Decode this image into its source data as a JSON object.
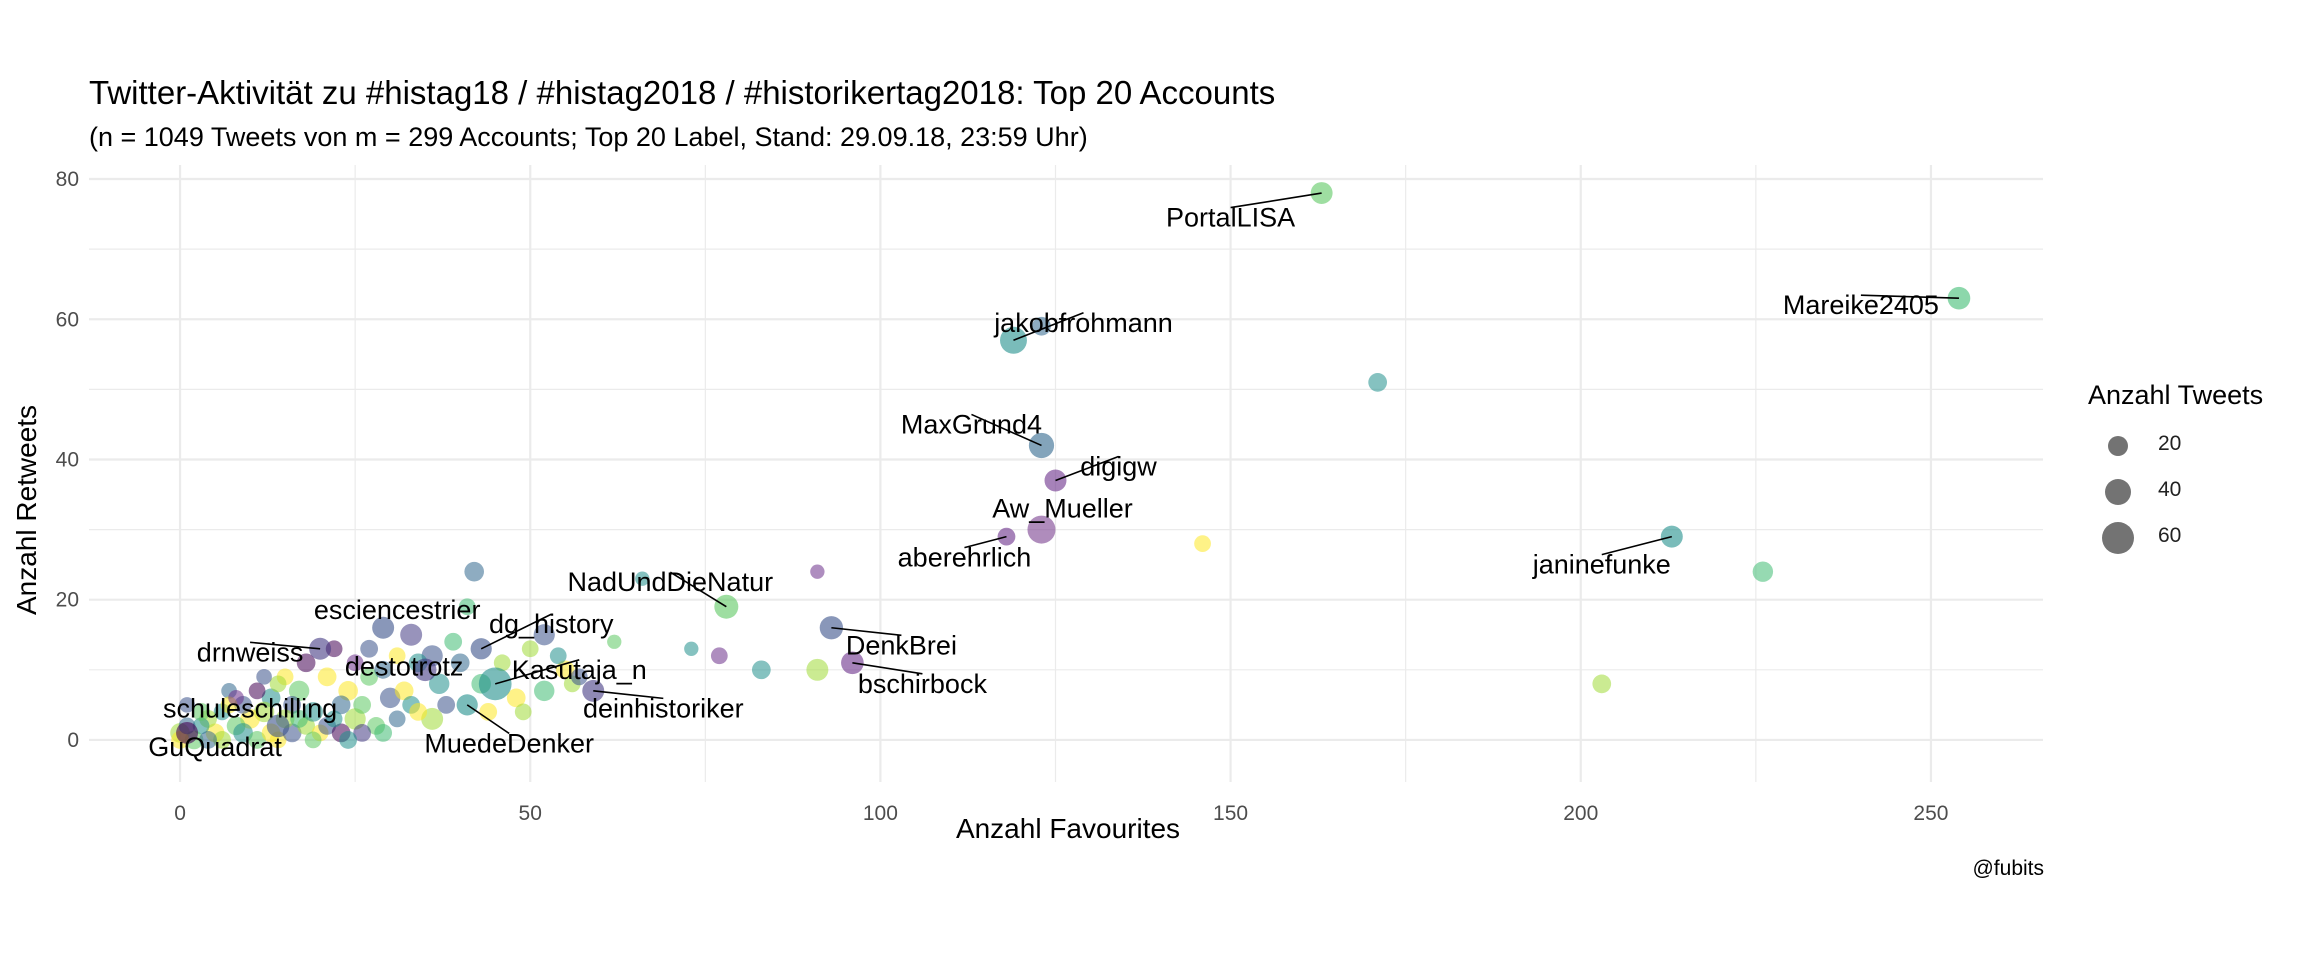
{
  "title": "Twitter-Aktivität zu #histag18 / #histag2018 / #historikertag2018: Top 20 Accounts",
  "subtitle": "(n = 1049 Tweets von m = 299 Accounts; Top 20 Label, Stand: 29.09.18, 23:59 Uhr)",
  "caption": "@fubits",
  "legend": {
    "title": "Anzahl Tweets",
    "items": [
      {
        "label": "20",
        "size": 20
      },
      {
        "label": "40",
        "size": 40
      },
      {
        "label": "60",
        "size": 60
      }
    ]
  },
  "colors": {
    "grid": "#ebebeb",
    "axis_text": "#4d4d4d",
    "palette": [
      "#440154",
      "#3b528b",
      "#21908c",
      "#5dc863",
      "#fde725"
    ]
  },
  "chart_data": {
    "type": "scatter",
    "title": "Twitter-Aktivität zu #histag18 / #histag2018 / #historikertag2018: Top 20 Accounts",
    "subtitle": "(n = 1049 Tweets von m = 299 Accounts; Top 20 Label, Stand: 29.09.18, 23:59 Uhr)",
    "xlabel": "Anzahl Favourites",
    "ylabel": "Anzahl Retweets",
    "xlim": [
      -13,
      266
    ],
    "ylim": [
      -6,
      82
    ],
    "xticks": [
      0,
      50,
      100,
      150,
      200,
      250
    ],
    "yticks": [
      0,
      20,
      40,
      60,
      80
    ],
    "grid": true,
    "legend_position": "right",
    "size_variable": "Anzahl Tweets",
    "labeled_points": [
      {
        "name": "PortalLISA",
        "x": 163,
        "y": 78,
        "size": 22,
        "color": "#5dc863",
        "label_x": 150,
        "label_y": 74.5
      },
      {
        "name": "Mareike2405",
        "x": 254,
        "y": 63,
        "size": 24,
        "color": "#3fbc73",
        "label_x": 240,
        "label_y": 62
      },
      {
        "name": "jakobfrohmann",
        "x": 119,
        "y": 57,
        "size": 38,
        "color": "#21908c",
        "label_x": 129,
        "label_y": 59.5
      },
      {
        "name": "MaxGrund4",
        "x": 123,
        "y": 42,
        "size": 32,
        "color": "#31688e",
        "label_x": 113,
        "label_y": 45
      },
      {
        "name": "digigw",
        "x": 125,
        "y": 37,
        "size": 22,
        "color": "#6b2f8a",
        "label_x": 134,
        "label_y": 39
      },
      {
        "name": "Aw_Mueller",
        "x": 123,
        "y": 30,
        "size": 42,
        "color": "#7a3f8f",
        "label_x": 126,
        "label_y": 33
      },
      {
        "name": "aberehrlich",
        "x": 118,
        "y": 29,
        "size": 12,
        "color": "#6b2f8a",
        "label_x": 112,
        "label_y": 26
      },
      {
        "name": "janinefunke",
        "x": 213,
        "y": 29,
        "size": 22,
        "color": "#21908c",
        "label_x": 203,
        "label_y": 25
      },
      {
        "name": "NadUndDieNatur",
        "x": 78,
        "y": 19,
        "size": 28,
        "color": "#5dc863",
        "label_x": 70,
        "label_y": 22.5
      },
      {
        "name": "esciencestrier",
        "x": 29,
        "y": 16,
        "size": 22,
        "color": "#3b528b",
        "label_x": 31,
        "label_y": 18.5
      },
      {
        "name": "DenkBrei",
        "x": 93,
        "y": 16,
        "size": 26,
        "color": "#3b528b",
        "label_x": 103,
        "label_y": 13.5
      },
      {
        "name": "dg_history",
        "x": 43,
        "y": 13,
        "size": 20,
        "color": "#3b528b",
        "label_x": 53,
        "label_y": 16.5
      },
      {
        "name": "drnweiss",
        "x": 20,
        "y": 13,
        "size": 22,
        "color": "#443a83",
        "label_x": 10,
        "label_y": 12.5
      },
      {
        "name": "bschirbock",
        "x": 96,
        "y": 11,
        "size": 24,
        "color": "#6b2f8a",
        "label_x": 106,
        "label_y": 8
      },
      {
        "name": "destotrotz",
        "x": 35,
        "y": 10,
        "size": 24,
        "color": "#443a83",
        "label_x": 32,
        "label_y": 10.5
      },
      {
        "name": "Kasutaja_n",
        "x": 45,
        "y": 8,
        "size": 62,
        "color": "#21908c",
        "label_x": 57,
        "label_y": 10
      },
      {
        "name": "deinhistoriker",
        "x": 59,
        "y": 7,
        "size": 22,
        "color": "#443a83",
        "label_x": 69,
        "label_y": 4.5
      },
      {
        "name": "schuleschilling",
        "x": 14,
        "y": 2,
        "size": 24,
        "color": "#3b528b",
        "label_x": 10,
        "label_y": 4.5
      },
      {
        "name": "MuedeDenker",
        "x": 41,
        "y": 5,
        "size": 20,
        "color": "#21908c",
        "label_x": 47,
        "label_y": -0.5
      },
      {
        "name": "GuQuadrat",
        "x": 1,
        "y": 1,
        "size": 22,
        "color": "#440154",
        "label_x": 5,
        "label_y": -1
      }
    ],
    "other_points": [
      {
        "x": 171,
        "y": 51,
        "size": 14,
        "color": "#21908c"
      },
      {
        "x": 146,
        "y": 28,
        "size": 10,
        "color": "#fde725"
      },
      {
        "x": 226,
        "y": 24,
        "size": 18,
        "color": "#3fbc73"
      },
      {
        "x": 203,
        "y": 8,
        "size": 14,
        "color": "#a0da39"
      },
      {
        "x": 91,
        "y": 24,
        "size": 6,
        "color": "#6b2f8a"
      },
      {
        "x": 123,
        "y": 59,
        "size": 14,
        "color": "#31688e"
      },
      {
        "x": 91,
        "y": 10,
        "size": 22,
        "color": "#a0da39"
      },
      {
        "x": 83,
        "y": 10,
        "size": 14,
        "color": "#21908c"
      },
      {
        "x": 77,
        "y": 12,
        "size": 10,
        "color": "#6b2f8a"
      },
      {
        "x": 73,
        "y": 13,
        "size": 6,
        "color": "#21908c"
      },
      {
        "x": 66,
        "y": 23,
        "size": 6,
        "color": "#21908c"
      },
      {
        "x": 42,
        "y": 24,
        "size": 16,
        "color": "#31688e"
      },
      {
        "x": 41,
        "y": 19,
        "size": 10,
        "color": "#3fbc73"
      },
      {
        "x": 52,
        "y": 15,
        "size": 20,
        "color": "#3b528b"
      },
      {
        "x": 50,
        "y": 13,
        "size": 10,
        "color": "#a0da39"
      },
      {
        "x": 55,
        "y": 10,
        "size": 14,
        "color": "#fde725"
      },
      {
        "x": 52,
        "y": 7,
        "size": 18,
        "color": "#3fbc73"
      },
      {
        "x": 56,
        "y": 8,
        "size": 10,
        "color": "#a0da39"
      },
      {
        "x": 48,
        "y": 6,
        "size": 14,
        "color": "#fde725"
      },
      {
        "x": 62,
        "y": 14,
        "size": 6,
        "color": "#5dc863"
      },
      {
        "x": 57,
        "y": 9,
        "size": 10,
        "color": "#3b528b"
      },
      {
        "x": 36,
        "y": 12,
        "size": 20,
        "color": "#3b528b"
      },
      {
        "x": 37,
        "y": 8,
        "size": 18,
        "color": "#21908c"
      },
      {
        "x": 33,
        "y": 15,
        "size": 22,
        "color": "#443a83"
      },
      {
        "x": 34,
        "y": 11,
        "size": 14,
        "color": "#21908c"
      },
      {
        "x": 38,
        "y": 5,
        "size": 12,
        "color": "#3b528b"
      },
      {
        "x": 40,
        "y": 11,
        "size": 14,
        "color": "#31688e"
      },
      {
        "x": 30,
        "y": 6,
        "size": 18,
        "color": "#3b528b"
      },
      {
        "x": 36,
        "y": 3,
        "size": 22,
        "color": "#a0da39"
      },
      {
        "x": 32,
        "y": 7,
        "size": 14,
        "color": "#fde725"
      },
      {
        "x": 27,
        "y": 9,
        "size": 12,
        "color": "#5dc863"
      },
      {
        "x": 24,
        "y": 7,
        "size": 16,
        "color": "#fde725"
      },
      {
        "x": 25,
        "y": 3,
        "size": 20,
        "color": "#a0da39"
      },
      {
        "x": 28,
        "y": 2,
        "size": 12,
        "color": "#5dc863"
      },
      {
        "x": 23,
        "y": 5,
        "size": 14,
        "color": "#31688e"
      },
      {
        "x": 22,
        "y": 13,
        "size": 10,
        "color": "#440154"
      },
      {
        "x": 21,
        "y": 9,
        "size": 14,
        "color": "#fde725"
      },
      {
        "x": 18,
        "y": 11,
        "size": 14,
        "color": "#440154"
      },
      {
        "x": 17,
        "y": 7,
        "size": 18,
        "color": "#5dc863"
      },
      {
        "x": 16,
        "y": 5,
        "size": 12,
        "color": "#3b528b"
      },
      {
        "x": 15,
        "y": 9,
        "size": 10,
        "color": "#fde725"
      },
      {
        "x": 13,
        "y": 6,
        "size": 14,
        "color": "#21908c"
      },
      {
        "x": 12,
        "y": 4,
        "size": 18,
        "color": "#a0da39"
      },
      {
        "x": 11,
        "y": 7,
        "size": 10,
        "color": "#440154"
      },
      {
        "x": 10,
        "y": 3,
        "size": 16,
        "color": "#fde725"
      },
      {
        "x": 9,
        "y": 5,
        "size": 12,
        "color": "#3b528b"
      },
      {
        "x": 8,
        "y": 2,
        "size": 14,
        "color": "#5dc863"
      },
      {
        "x": 7,
        "y": 7,
        "size": 8,
        "color": "#31688e"
      },
      {
        "x": 6,
        "y": 4,
        "size": 10,
        "color": "#21908c"
      },
      {
        "x": 5,
        "y": 1,
        "size": 14,
        "color": "#fde725"
      },
      {
        "x": 4,
        "y": 3,
        "size": 12,
        "color": "#a0da39"
      },
      {
        "x": 3,
        "y": 2,
        "size": 10,
        "color": "#21908c"
      },
      {
        "x": 2,
        "y": 0,
        "size": 14,
        "color": "#5dc863"
      },
      {
        "x": 0,
        "y": 1,
        "size": 16,
        "color": "#a0da39"
      },
      {
        "x": 0,
        "y": 0,
        "size": 12,
        "color": "#fde725"
      },
      {
        "x": 1,
        "y": 2,
        "size": 10,
        "color": "#31688e"
      },
      {
        "x": 6,
        "y": 0,
        "size": 12,
        "color": "#a0da39"
      },
      {
        "x": 9,
        "y": 1,
        "size": 16,
        "color": "#21908c"
      },
      {
        "x": 11,
        "y": 0,
        "size": 12,
        "color": "#5dc863"
      },
      {
        "x": 14,
        "y": 0,
        "size": 10,
        "color": "#fde725"
      },
      {
        "x": 16,
        "y": 1,
        "size": 14,
        "color": "#3b528b"
      },
      {
        "x": 18,
        "y": 2,
        "size": 12,
        "color": "#a0da39"
      },
      {
        "x": 19,
        "y": 4,
        "size": 16,
        "color": "#21908c"
      },
      {
        "x": 20,
        "y": 1,
        "size": 10,
        "color": "#fde725"
      },
      {
        "x": 21,
        "y": 2,
        "size": 12,
        "color": "#3b528b"
      },
      {
        "x": 23,
        "y": 1,
        "size": 14,
        "color": "#440154"
      },
      {
        "x": 26,
        "y": 1,
        "size": 12,
        "color": "#443a83"
      },
      {
        "x": 29,
        "y": 1,
        "size": 12,
        "color": "#3fbc73"
      },
      {
        "x": 33,
        "y": 5,
        "size": 12,
        "color": "#21908c"
      },
      {
        "x": 14,
        "y": 8,
        "size": 10,
        "color": "#a0da39"
      },
      {
        "x": 12,
        "y": 9,
        "size": 8,
        "color": "#3b528b"
      },
      {
        "x": 7,
        "y": 5,
        "size": 10,
        "color": "#fde725"
      },
      {
        "x": 3,
        "y": 4,
        "size": 12,
        "color": "#5dc863"
      },
      {
        "x": 8,
        "y": 6,
        "size": 8,
        "color": "#6b2f8a"
      },
      {
        "x": 15,
        "y": 3,
        "size": 14,
        "color": "#a0da39"
      },
      {
        "x": 17,
        "y": 3,
        "size": 12,
        "color": "#3fbc73"
      },
      {
        "x": 22,
        "y": 3,
        "size": 10,
        "color": "#21908c"
      },
      {
        "x": 26,
        "y": 5,
        "size": 12,
        "color": "#5dc863"
      },
      {
        "x": 31,
        "y": 3,
        "size": 10,
        "color": "#31688e"
      },
      {
        "x": 34,
        "y": 4,
        "size": 12,
        "color": "#fde725"
      },
      {
        "x": 43,
        "y": 8,
        "size": 16,
        "color": "#3fbc73"
      },
      {
        "x": 44,
        "y": 4,
        "size": 12,
        "color": "#fde725"
      },
      {
        "x": 49,
        "y": 4,
        "size": 10,
        "color": "#a0da39"
      },
      {
        "x": 54,
        "y": 12,
        "size": 10,
        "color": "#21908c"
      },
      {
        "x": 39,
        "y": 14,
        "size": 12,
        "color": "#3fbc73"
      },
      {
        "x": 31,
        "y": 12,
        "size": 10,
        "color": "#fde725"
      },
      {
        "x": 27,
        "y": 13,
        "size": 12,
        "color": "#3b528b"
      },
      {
        "x": 25,
        "y": 11,
        "size": 10,
        "color": "#6b2f8a"
      },
      {
        "x": 29,
        "y": 10,
        "size": 12,
        "color": "#31688e"
      },
      {
        "x": 46,
        "y": 11,
        "size": 10,
        "color": "#a0da39"
      },
      {
        "x": 1,
        "y": 5,
        "size": 8,
        "color": "#3b528b"
      },
      {
        "x": 4,
        "y": 0,
        "size": 12,
        "color": "#31688e"
      },
      {
        "x": 13,
        "y": 1,
        "size": 14,
        "color": "#fde725"
      },
      {
        "x": 19,
        "y": 0,
        "size": 10,
        "color": "#5dc863"
      },
      {
        "x": 24,
        "y": 0,
        "size": 12,
        "color": "#21908c"
      }
    ]
  }
}
